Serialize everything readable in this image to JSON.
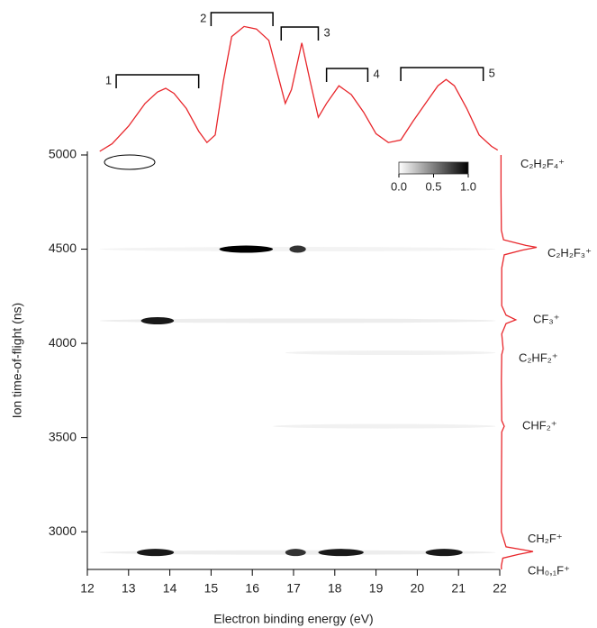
{
  "chart_data": {
    "type": "heatmap",
    "xlabel": "Electron binding energy (eV)",
    "ylabel": "Ion time-of-flight (ns)",
    "xlim": [
      12,
      22
    ],
    "xticks": [
      12,
      13,
      14,
      15,
      16,
      17,
      18,
      19,
      20,
      21,
      22
    ],
    "ylim": [
      2800,
      5000
    ],
    "yticks": [
      3000,
      3500,
      4000,
      4500,
      5000
    ],
    "colormap": "gray",
    "colorbar_lim": [
      0,
      1
    ],
    "colorbar_ticks": [
      {
        "value": 0,
        "label": "0.0"
      },
      0.5,
      {
        "value": 1,
        "label": "1.0"
      }
    ],
    "spots": [
      {
        "tof": 4500,
        "x0": 12.3,
        "x1": 21.9,
        "intensity": 0.05
      },
      {
        "tof": 4120,
        "x0": 12.3,
        "x1": 21.9,
        "intensity": 0.08
      },
      {
        "tof": 3950,
        "x0": 16.8,
        "x1": 21.9,
        "intensity": 0.06
      },
      {
        "tof": 3560,
        "x0": 16.5,
        "x1": 21.9,
        "intensity": 0.06
      },
      {
        "tof": 2890,
        "x0": 12.3,
        "x1": 21.9,
        "intensity": 0.08
      },
      {
        "tof": 4500,
        "x0": 15.2,
        "x1": 16.5,
        "intensity": 1.0
      },
      {
        "tof": 4500,
        "x0": 16.9,
        "x1": 17.3,
        "intensity": 0.8
      },
      {
        "tof": 4120,
        "x0": 13.3,
        "x1": 14.1,
        "intensity": 0.9
      },
      {
        "tof": 2890,
        "x0": 13.2,
        "x1": 14.1,
        "intensity": 0.9
      },
      {
        "tof": 2890,
        "x0": 16.8,
        "x1": 17.3,
        "intensity": 0.8
      },
      {
        "tof": 2890,
        "x0": 17.6,
        "x1": 18.7,
        "intensity": 0.9
      },
      {
        "tof": 2890,
        "x0": 20.2,
        "x1": 21.1,
        "intensity": 0.9
      }
    ],
    "top_spectrum": {
      "color": "#e8262b",
      "x": [
        12.3,
        12.6,
        13.0,
        13.4,
        13.7,
        13.9,
        14.1,
        14.4,
        14.7,
        14.9,
        15.1,
        15.3,
        15.5,
        15.8,
        16.1,
        16.4,
        16.6,
        16.8,
        16.95,
        17.2,
        17.4,
        17.6,
        17.8,
        18.1,
        18.4,
        18.7,
        19.0,
        19.3,
        19.6,
        19.9,
        20.2,
        20.5,
        20.7,
        20.9,
        21.2,
        21.5,
        21.8,
        21.95
      ],
      "values": [
        0,
        0.06,
        0.2,
        0.38,
        0.47,
        0.5,
        0.46,
        0.34,
        0.16,
        0.07,
        0.13,
        0.56,
        0.91,
        0.99,
        0.97,
        0.88,
        0.63,
        0.38,
        0.49,
        0.86,
        0.56,
        0.27,
        0.38,
        0.52,
        0.45,
        0.31,
        0.14,
        0.07,
        0.09,
        0.24,
        0.38,
        0.52,
        0.57,
        0.52,
        0.34,
        0.13,
        0.04,
        0.01
      ]
    },
    "bands": [
      {
        "label": "1",
        "x0": 12.7,
        "x1": 14.7
      },
      {
        "label": "2",
        "x0": 15.0,
        "x1": 16.5
      },
      {
        "label": "3",
        "x0": 16.7,
        "x1": 17.6
      },
      {
        "label": "4",
        "x0": 17.8,
        "x1": 18.8
      },
      {
        "label": "5",
        "x0": 19.6,
        "x1": 21.6
      }
    ],
    "side_spectrum": {
      "color": "#e8262b",
      "tof": [
        5000,
        4800,
        4600,
        4550,
        4520,
        4510,
        4495,
        4470,
        4400,
        4200,
        4150,
        4125,
        4105,
        4050,
        3970,
        3940,
        3800,
        3590,
        3560,
        3530,
        3200,
        3000,
        2920,
        2895,
        2880,
        2860,
        2820,
        2800
      ],
      "values": [
        0.01,
        0.01,
        0.02,
        0.08,
        0.7,
        1.0,
        0.6,
        0.1,
        0.03,
        0.03,
        0.15,
        0.42,
        0.15,
        0.03,
        0.07,
        0.03,
        0.02,
        0.03,
        0.1,
        0.03,
        0.02,
        0.02,
        0.15,
        0.9,
        0.5,
        0.06,
        0.02,
        0.02
      ]
    },
    "ions": [
      {
        "label": "C₂H₂F₄⁺",
        "tof": 4950
      },
      {
        "label": "C₂H₂F₃⁺",
        "tof": 4475
      },
      {
        "label": "CF₃⁺",
        "tof": 4125
      },
      {
        "label": "C₂HF₂⁺",
        "tof": 3920
      },
      {
        "label": "CHF₂⁺",
        "tof": 3560
      },
      {
        "label": "CH₂F⁺",
        "tof": 2960
      },
      {
        "label": "CH₀,₁F⁺",
        "tof": 2790
      }
    ]
  }
}
